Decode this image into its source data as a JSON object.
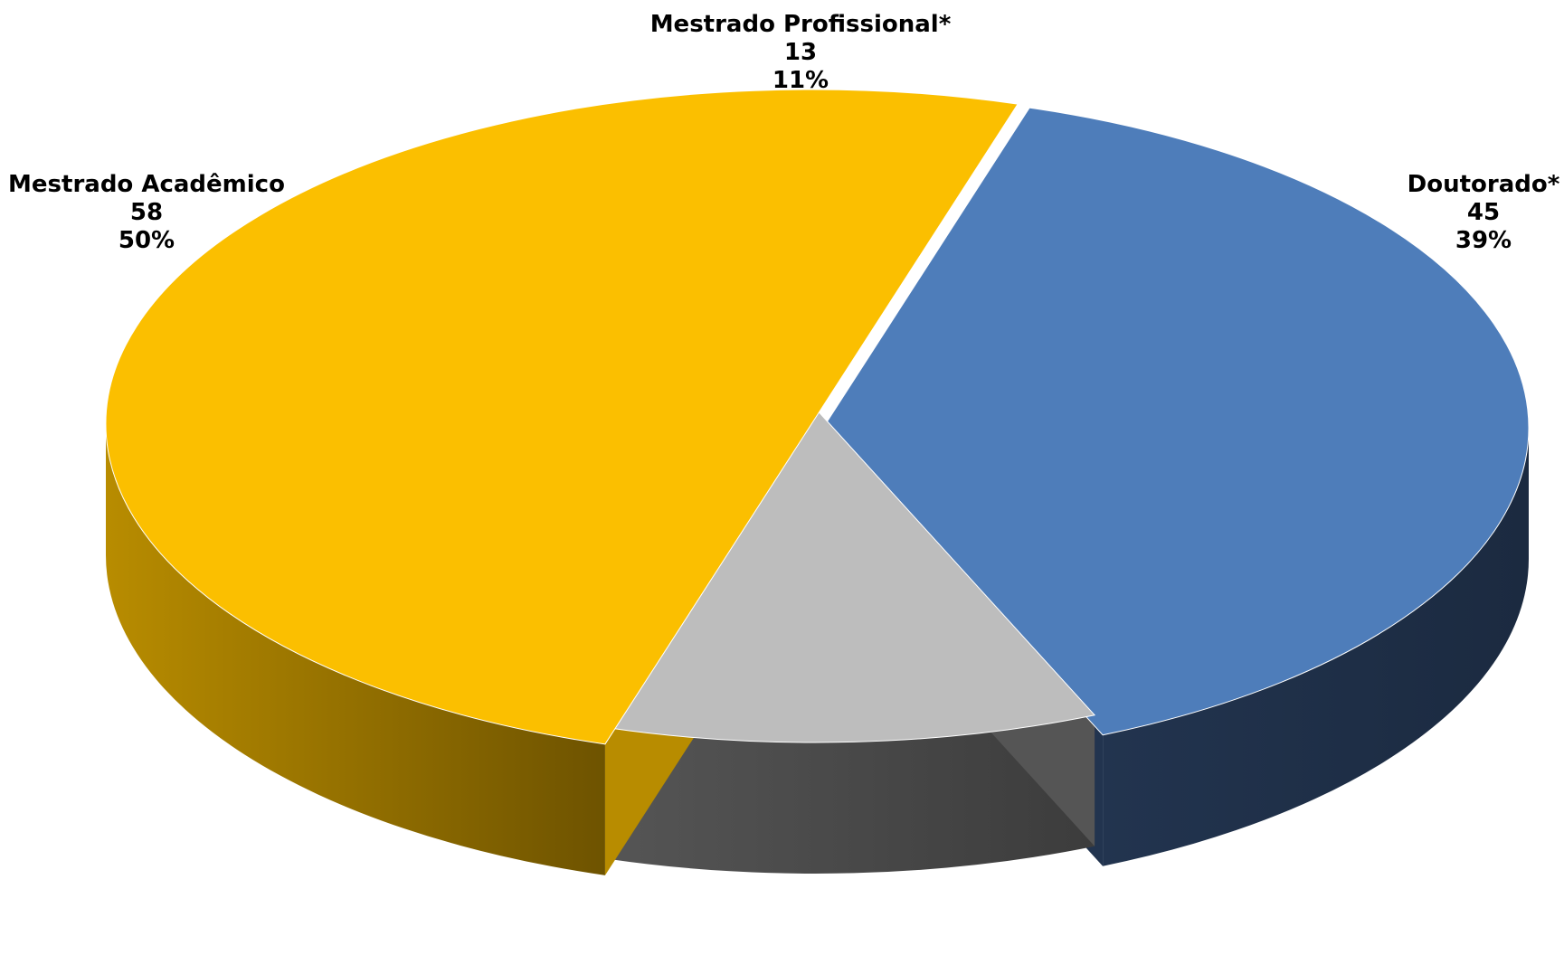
{
  "chart_data": {
    "type": "pie",
    "style": "3d-exploded",
    "title": "",
    "categories": [
      "Doutorado*",
      "Mestrado Profissional*",
      "Mestrado Acadêmico"
    ],
    "values": [
      45,
      13,
      58
    ],
    "percent_labels": [
      "39%",
      "11%",
      "50%"
    ],
    "colors": {
      "top": [
        "#4E7DBA",
        "#BDBDBD",
        "#FBBF00"
      ],
      "side": [
        "#22344F",
        "#555555",
        "#B88C00"
      ],
      "side_dark": [
        "#1B2A40",
        "#3C3C3C",
        "#6E5300"
      ]
    },
    "legend": "none"
  }
}
